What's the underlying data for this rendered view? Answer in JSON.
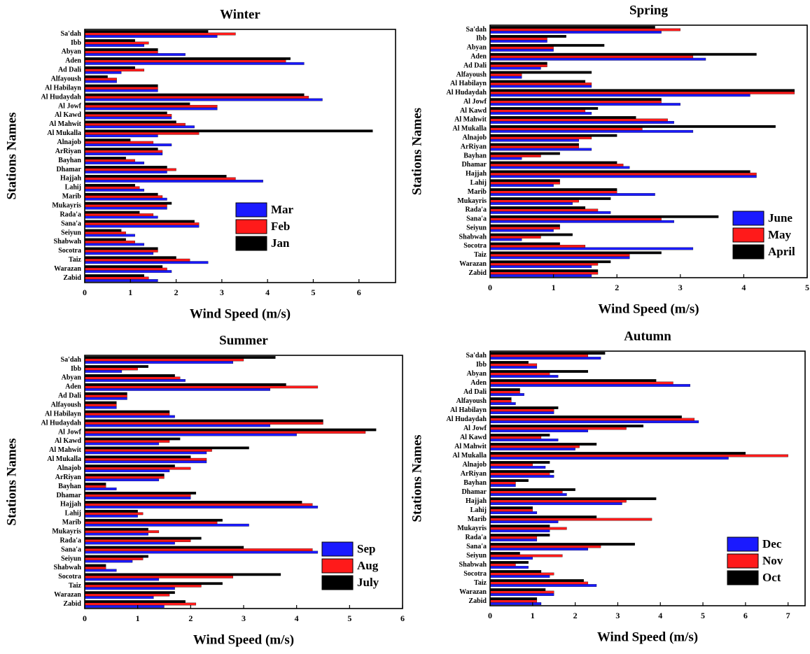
{
  "chart_data": [
    {
      "type": "bar",
      "orientation": "horizontal",
      "title": "Winter",
      "xlabel": "Wind Speed (m/s)",
      "ylabel": "Stations Names",
      "legend": "lower right",
      "categories": [
        "Sa'dah",
        "Ibb",
        "Abyan",
        "Aden",
        "Ad Dali",
        "Alfayoush",
        "Al Habilayn",
        "Al Hudaydah",
        "Al Jowf",
        "Al Kawd",
        "Al Mahwit",
        "Al Mukalla",
        "Alnajob",
        "ArRiyan",
        "Bayhan",
        "Dhamar",
        "Hajjah",
        "Lahij",
        "Marib",
        "Mukayris",
        "Rada'a",
        "Sana'a",
        "Seiyun",
        "Shabwah",
        "Socotra",
        "Taiz",
        "Warazan",
        "Zabid"
      ],
      "series": [
        {
          "name": "Mar",
          "color": "#1a1aff",
          "values": [
            2.9,
            1.3,
            2.2,
            4.8,
            0.8,
            0.7,
            1.6,
            5.2,
            2.9,
            1.9,
            2.4,
            1.6,
            1.9,
            1.7,
            1.3,
            1.8,
            3.9,
            1.3,
            1.8,
            1.8,
            1.6,
            2.5,
            1.1,
            1.3,
            1.5,
            2.7,
            1.9,
            1.6
          ]
        },
        {
          "name": "Feb",
          "color": "#ff1a1a",
          "values": [
            3.3,
            1.4,
            1.6,
            4.4,
            1.3,
            0.7,
            1.6,
            4.9,
            2.9,
            1.9,
            2.2,
            2.5,
            1.5,
            1.7,
            1.1,
            2.0,
            3.3,
            1.2,
            1.7,
            1.8,
            1.5,
            2.5,
            0.9,
            1.1,
            1.6,
            2.3,
            1.8,
            1.4
          ]
        },
        {
          "name": "Jan",
          "color": "#000000",
          "values": [
            2.7,
            1.1,
            1.6,
            4.5,
            1.1,
            0.5,
            1.6,
            4.8,
            2.3,
            1.8,
            2.0,
            6.3,
            1.0,
            1.6,
            0.9,
            1.8,
            3.1,
            1.1,
            1.6,
            1.9,
            1.2,
            2.4,
            0.8,
            0.9,
            1.6,
            2.0,
            1.7,
            1.3
          ]
        }
      ],
      "xlim": [
        0,
        6.8
      ],
      "xticks": [
        0,
        1,
        2,
        3,
        4,
        5,
        6
      ]
    },
    {
      "type": "bar",
      "orientation": "horizontal",
      "title": "Spring",
      "xlabel": "Wind Speed (m/s)",
      "ylabel": "Stations Names",
      "legend": "lower right",
      "categories": [
        "Sa'dah",
        "Ibb",
        "Abyan",
        "Aden",
        "Ad Dali",
        "Alfayoush",
        "Al Habilayn",
        "Al Hudaydah",
        "Al Jowf",
        "Al Kawd",
        "Al Mahwit",
        "Al Mukalla",
        "Alnajob",
        "ArRiyan",
        "Bayhan",
        "Dhamar",
        "Hajjah",
        "Lahij",
        "Marib",
        "Mukayris",
        "Rada'a",
        "Sana'a",
        "Seiyun",
        "Shabwah",
        "Socotra",
        "Taiz",
        "Warazan",
        "Zabid"
      ],
      "series": [
        {
          "name": "June",
          "color": "#1a1aff",
          "values": [
            2.7,
            0.9,
            1.0,
            3.4,
            0.8,
            0.5,
            1.6,
            4.1,
            3.0,
            1.6,
            2.9,
            3.2,
            1.4,
            1.6,
            0.5,
            2.2,
            4.2,
            1.0,
            2.6,
            1.3,
            1.9,
            2.9,
            1.0,
            0.5,
            3.2,
            2.2,
            1.6,
            1.6
          ]
        },
        {
          "name": "May",
          "color": "#ff1a1a",
          "values": [
            3.0,
            0.9,
            1.0,
            3.2,
            0.9,
            0.5,
            1.6,
            4.8,
            2.7,
            1.5,
            2.8,
            2.4,
            1.6,
            1.4,
            0.8,
            2.1,
            4.2,
            1.1,
            2.0,
            1.4,
            1.7,
            2.7,
            1.1,
            0.8,
            1.5,
            2.2,
            1.7,
            1.7
          ]
        },
        {
          "name": "April",
          "color": "#000000",
          "values": [
            2.6,
            1.2,
            1.8,
            4.2,
            0.9,
            1.6,
            1.5,
            4.8,
            2.7,
            1.7,
            2.3,
            4.5,
            2.0,
            1.4,
            1.1,
            2.0,
            4.1,
            1.1,
            2.0,
            1.9,
            1.5,
            3.6,
            1.1,
            1.3,
            1.1,
            2.7,
            1.9,
            1.7
          ]
        }
      ],
      "xlim": [
        0,
        5
      ],
      "xticks": [
        0,
        1,
        2,
        3,
        4,
        5
      ]
    },
    {
      "type": "bar",
      "orientation": "horizontal",
      "title": "Summer",
      "xlabel": "Wind Speed (m/s)",
      "ylabel": "Stations Names",
      "legend": "lower right",
      "categories": [
        "Sa'dah",
        "Ibb",
        "Abyan",
        "Aden",
        "Ad Dali",
        "Alfayoush",
        "Al Habilayn",
        "Al Hudaydah",
        "Al Jowf",
        "Al Kawd",
        "Al Mahwit",
        "Al Mukalla",
        "Alnajob",
        "ArRiyan",
        "Bayhan",
        "Dhamar",
        "Hajjah",
        "Lahij",
        "Marib",
        "Mukayris",
        "Rada'a",
        "Sana'a",
        "Seiyun",
        "Shabwah",
        "Socotra",
        "Taiz",
        "Warazan",
        "Zabid"
      ],
      "series": [
        {
          "name": "Sep",
          "color": "#1a1aff",
          "values": [
            2.8,
            0.7,
            1.9,
            3.5,
            0.8,
            0.6,
            1.7,
            3.5,
            4.0,
            1.4,
            2.3,
            2.3,
            1.6,
            1.4,
            0.6,
            2.0,
            4.4,
            1.0,
            3.1,
            1.2,
            1.7,
            4.4,
            0.9,
            0.6,
            1.4,
            1.7,
            1.3,
            1.5
          ]
        },
        {
          "name": "Aug",
          "color": "#ff1a1a",
          "values": [
            3.0,
            1.0,
            1.8,
            4.4,
            0.8,
            0.6,
            1.6,
            4.5,
            5.3,
            1.6,
            2.4,
            2.3,
            2.0,
            1.5,
            0.4,
            2.0,
            4.3,
            1.1,
            2.5,
            1.4,
            2.0,
            4.3,
            1.1,
            0.4,
            2.8,
            2.2,
            1.6,
            2.1
          ]
        },
        {
          "name": "July",
          "color": "#000000",
          "values": [
            3.6,
            1.2,
            1.7,
            3.8,
            0.8,
            0.6,
            1.6,
            4.5,
            5.5,
            1.8,
            3.1,
            2.0,
            1.7,
            1.5,
            0.4,
            2.1,
            4.1,
            1.0,
            2.6,
            1.2,
            2.2,
            3.0,
            1.2,
            0.4,
            3.7,
            2.6,
            1.7,
            1.9
          ]
        }
      ],
      "xlim": [
        0,
        6
      ],
      "xticks": [
        0,
        1,
        2,
        3,
        4,
        5,
        6
      ]
    },
    {
      "type": "bar",
      "orientation": "horizontal",
      "title": "Autumn",
      "xlabel": "Wind Speed (m/s)",
      "ylabel": "Stations Names",
      "legend": "lower right",
      "categories": [
        "Sa'dah",
        "Ibb",
        "Abyan",
        "Aden",
        "Ad Dali",
        "Alfayoush",
        "Al Habilayn",
        "Al Hudaydah",
        "Al Jowf",
        "Al Kawd",
        "Al Mahwit",
        "Al Mukalla",
        "Alnajob",
        "ArRiyan",
        "Bayhan",
        "Dhamar",
        "Hajjah",
        "Lahij",
        "Marib",
        "Mukayris",
        "Rada'a",
        "Sana'a",
        "Seiyun",
        "Shabwah",
        "Socotra",
        "Taiz",
        "Warazan",
        "Zabid"
      ],
      "series": [
        {
          "name": "Dec",
          "color": "#1a1aff",
          "values": [
            2.6,
            1.1,
            1.6,
            4.7,
            0.8,
            0.6,
            1.5,
            4.9,
            2.3,
            1.6,
            2.0,
            5.6,
            1.3,
            1.5,
            0.6,
            1.8,
            3.1,
            1.1,
            1.6,
            1.4,
            1.1,
            2.3,
            1.0,
            0.9,
            1.4,
            2.5,
            1.5,
            1.2
          ]
        },
        {
          "name": "Nov",
          "color": "#ff1a1a",
          "values": [
            2.3,
            1.1,
            1.4,
            4.3,
            0.7,
            0.5,
            1.5,
            4.8,
            3.2,
            1.2,
            2.1,
            7.0,
            1.0,
            1.4,
            0.6,
            1.7,
            3.2,
            1.0,
            3.8,
            1.8,
            1.1,
            2.6,
            1.7,
            0.6,
            1.5,
            2.3,
            1.5,
            1.1
          ]
        },
        {
          "name": "Oct",
          "color": "#000000",
          "values": [
            2.7,
            0.9,
            2.3,
            3.9,
            0.7,
            0.5,
            1.6,
            4.5,
            3.6,
            1.4,
            2.5,
            6.0,
            1.4,
            1.5,
            0.9,
            2.0,
            3.9,
            1.0,
            2.5,
            1.4,
            1.4,
            3.4,
            0.7,
            0.9,
            1.2,
            2.2,
            1.3,
            1.1
          ]
        }
      ],
      "xlim": [
        0,
        7.4
      ],
      "xticks": [
        0,
        1,
        2,
        3,
        4,
        5,
        6,
        7
      ]
    }
  ]
}
